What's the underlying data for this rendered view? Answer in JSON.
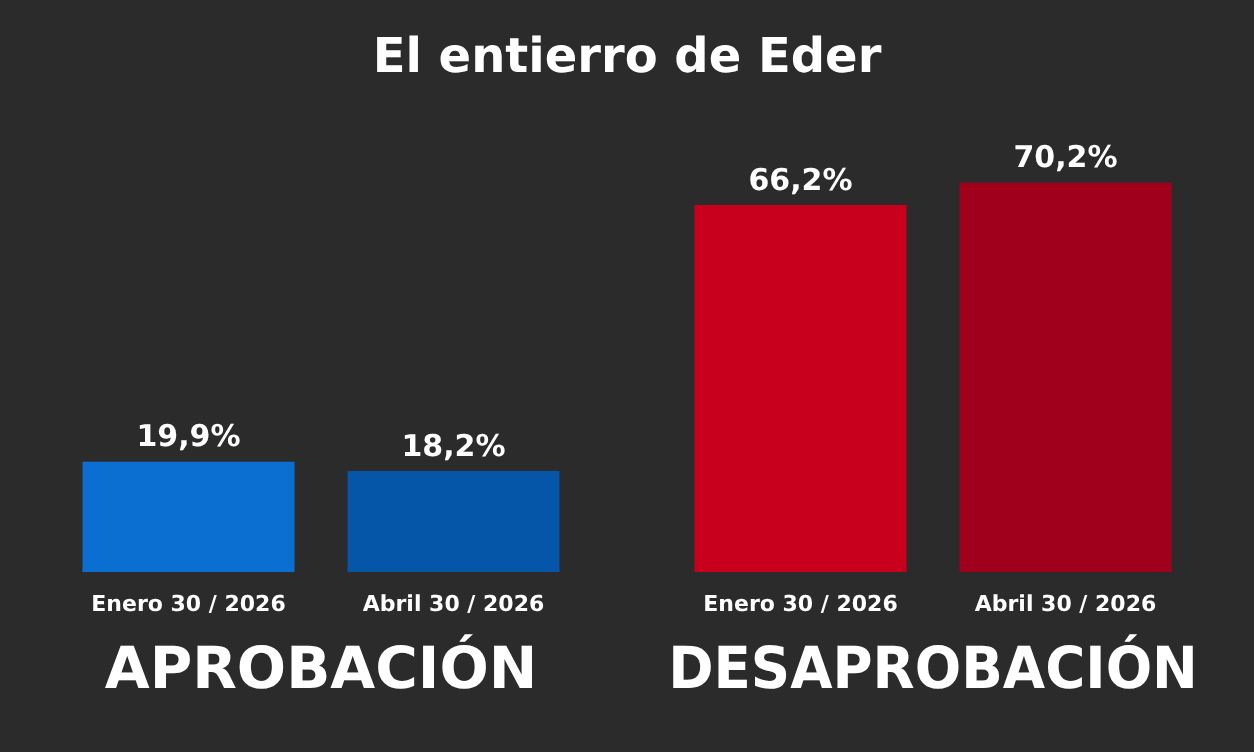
{
  "chart_data": [
    {
      "type": "bar",
      "title": "El entierro de Eder",
      "categories": [
        "Enero 30 / 2026",
        "Abril 30 / 2026"
      ],
      "values": [
        19.9,
        18.2
      ],
      "colors": [
        "#0a6fd0",
        "#0556a8"
      ],
      "value_labels": [
        "19,9%",
        "18,2%"
      ],
      "xlabel": "APROBACIÓN"
    },
    {
      "type": "bar",
      "categories": [
        "Enero 30 / 2026",
        "Abril 30 / 2026"
      ],
      "values": [
        66.2,
        70.2
      ],
      "colors": [
        "#c8001e",
        "#a0001c"
      ],
      "value_labels": [
        "66,2%",
        "70,2%"
      ],
      "xlabel": "DESAPROBACIÓN"
    }
  ]
}
